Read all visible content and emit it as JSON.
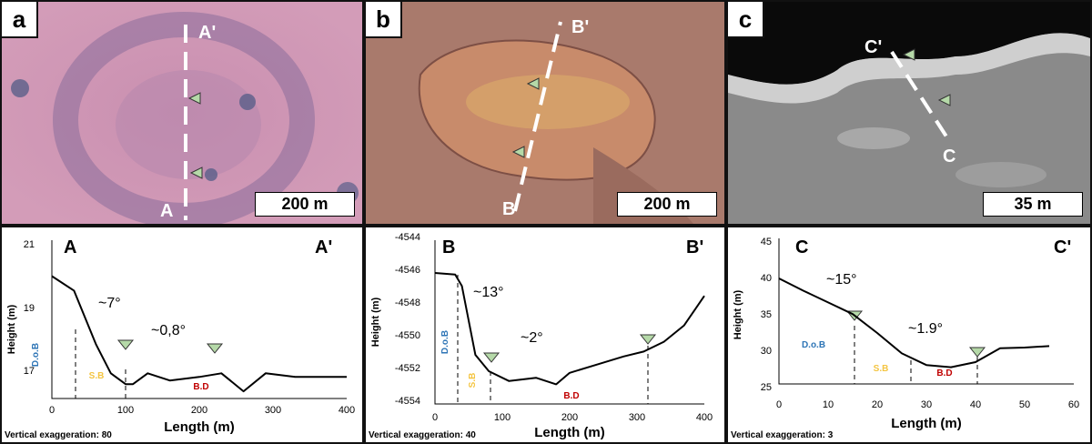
{
  "panels": [
    {
      "letter": "a",
      "scale": "200 m",
      "start": "A",
      "end": "A'"
    },
    {
      "letter": "b",
      "scale": "200 m",
      "start": "B",
      "end": "B'"
    },
    {
      "letter": "c",
      "scale": "35 m",
      "start": "C",
      "end": "C'"
    }
  ],
  "profiles": [
    {
      "start": "A",
      "end": "A'",
      "xlabel": "Length (m)",
      "ylabel": "Height (m)",
      "xticks": [
        "0",
        "100",
        "200",
        "300",
        "400"
      ],
      "yticks": [
        "21",
        "19",
        "17"
      ],
      "angles": [
        "~7°",
        "~0,8°"
      ],
      "zones": {
        "dob": "D.o.B",
        "sb": "S.B",
        "bd": "B.D"
      },
      "vexag": "Vertical exaggeration: 80"
    },
    {
      "start": "B",
      "end": "B'",
      "xlabel": "Length (m)",
      "ylabel": "Height (m)",
      "xticks": [
        "0",
        "100",
        "200",
        "300",
        "400"
      ],
      "yticks": [
        "-4544",
        "-4546",
        "-4548",
        "-4550",
        "-4552",
        "-4554"
      ],
      "angles": [
        "~13°",
        "~2°"
      ],
      "zones": {
        "dob": "D.o.B",
        "sb": "S.B",
        "bd": "B.D"
      },
      "vexag": "Vertical exaggeration: 40"
    },
    {
      "start": "C",
      "end": "C'",
      "xlabel": "Length (m)",
      "ylabel": "Height (m)",
      "xticks": [
        "0",
        "10",
        "20",
        "30",
        "40",
        "50",
        "60"
      ],
      "yticks": [
        "45",
        "40",
        "35",
        "30",
        "25"
      ],
      "angles": [
        "~15°",
        "~1.9°"
      ],
      "zones": {
        "dob": "D.o.B",
        "sb": "S.B",
        "bd": "B.D"
      },
      "vexag": "Vertical exaggeration: 3"
    }
  ],
  "colors": {
    "dob": "#2e75b6",
    "sb": "#f4c542",
    "bd": "#c00000",
    "marker": "#b5d9a8"
  },
  "chart_data": [
    {
      "type": "line",
      "xlabel": "Length (m)",
      "ylabel": "Height (m)",
      "xlim": [
        0,
        400
      ],
      "ylim": [
        16.6,
        21
      ],
      "x": [
        0,
        30,
        60,
        80,
        100,
        110,
        130,
        160,
        200,
        230,
        260,
        290,
        330,
        370,
        400
      ],
      "y": [
        20,
        19.6,
        18.1,
        17.3,
        17.0,
        17.0,
        17.3,
        17.1,
        17.2,
        17.3,
        16.8,
        17.3,
        17.2,
        17.2,
        17.2
      ]
    },
    {
      "type": "line",
      "xlabel": "Length (m)",
      "ylabel": "Height (m)",
      "xlim": [
        0,
        400
      ],
      "ylim": [
        -4554,
        -4544
      ],
      "x": [
        0,
        30,
        40,
        60,
        80,
        110,
        150,
        180,
        200,
        240,
        280,
        310,
        340,
        370,
        400
      ],
      "y": [
        -4546,
        -4546.1,
        -4546.8,
        -4551,
        -4552,
        -4552.6,
        -4552.4,
        -4552.8,
        -4552.1,
        -4551.6,
        -4551.1,
        -4550.8,
        -4550.2,
        -4549.2,
        -4547.4
      ]
    },
    {
      "type": "line",
      "xlabel": "Length (m)",
      "ylabel": "Height (m)",
      "xlim": [
        0,
        60
      ],
      "ylim": [
        25,
        45
      ],
      "x": [
        0,
        5,
        10,
        15,
        20,
        25,
        30,
        35,
        40,
        45,
        50,
        55
      ],
      "y": [
        39.5,
        37.8,
        36.2,
        34.6,
        32.0,
        29.2,
        27.6,
        27.3,
        28.0,
        29.9,
        30.0,
        30.2
      ]
    }
  ]
}
